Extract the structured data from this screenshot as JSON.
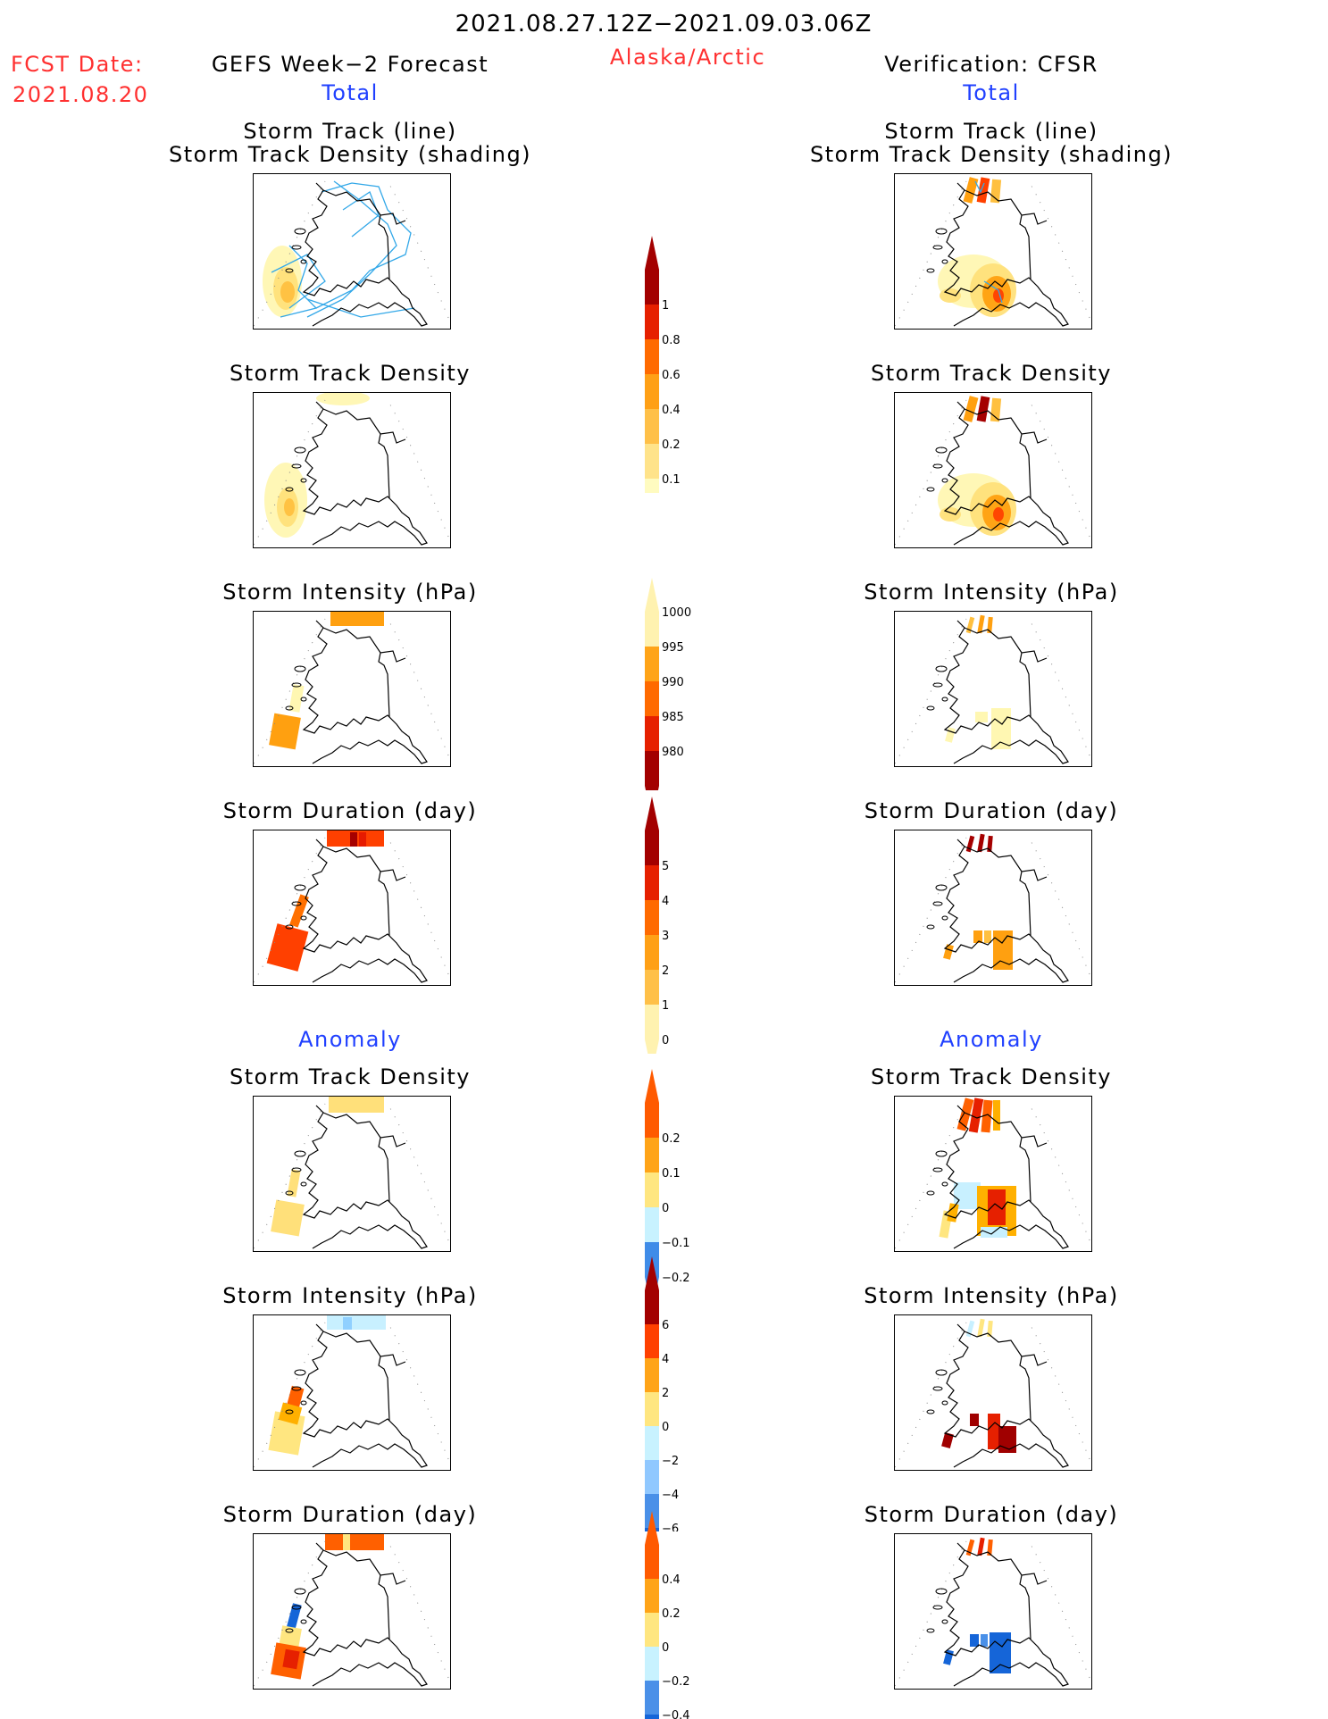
{
  "header": {
    "period": "2021.08.27.12Z−2021.09.03.06Z",
    "region": "Alaska/Arctic",
    "fcst_label": "FCST Date:",
    "fcst_date": "2021.08.20",
    "left_model": "GEFS Week−2 Forecast",
    "right_model": "Verification: CFSR"
  },
  "sections": {
    "total": "Total",
    "anomaly": "Anomaly"
  },
  "panel_titles": {
    "track_line": "Storm Track (line)",
    "track_shading": "Storm Track Density (shading)",
    "density": "Storm Track Density",
    "intensity": "Storm Intensity (hPa)",
    "duration": "Storm Duration (day)"
  },
  "colors": {
    "header_red": "#ff3030",
    "section_blue": "#2040ff",
    "track_line": "#33a8e8",
    "warm_scale": [
      "#fff7b2",
      "#ffe07a",
      "#ffc040",
      "#ffa010",
      "#ff7000",
      "#ff4000",
      "#e61a00",
      "#a50000"
    ],
    "anom_scale": [
      "#1565d8",
      "#4a90e8",
      "#90d0ff",
      "#c8f0ff",
      "#ffe680",
      "#ffb000",
      "#ff6000",
      "#e62000",
      "#a00000"
    ]
  },
  "chart_data": [
    {
      "type": "colorbar",
      "name": "total-storm-track-density",
      "ticks": [
        "0.1",
        "0.2",
        "0.4",
        "0.6",
        "0.8",
        "1"
      ],
      "colors": [
        "#fffbc0",
        "#ffe38a",
        "#ffc048",
        "#ffa016",
        "#ff6a00",
        "#e62000",
        "#a30000"
      ],
      "extend": "max"
    },
    {
      "type": "colorbar",
      "name": "total-storm-intensity",
      "ticks": [
        "1000",
        "995",
        "990",
        "985",
        "980"
      ],
      "colors": [
        "#fff2b0",
        "#ffa418",
        "#ff6a00",
        "#e62000",
        "#a30000"
      ],
      "extend": "both"
    },
    {
      "type": "colorbar",
      "name": "total-storm-duration",
      "ticks": [
        "0",
        "1",
        "2",
        "3",
        "4",
        "5"
      ],
      "colors": [
        "#fff2b0",
        "#ffc048",
        "#ffa016",
        "#ff6a00",
        "#e62000",
        "#a30000"
      ],
      "extend": "both"
    },
    {
      "type": "colorbar",
      "name": "anomaly-storm-track-density",
      "ticks": [
        "0.2",
        "0.1",
        "0",
        "−0.1",
        "−0.2"
      ],
      "colors": [
        "#ff5a00",
        "#ffa418",
        "#ffe680",
        "#c8f2ff",
        "#3f8ce8"
      ],
      "extend": "both"
    },
    {
      "type": "colorbar",
      "name": "anomaly-storm-intensity",
      "ticks": [
        "6",
        "4",
        "2",
        "0",
        "−2",
        "−4",
        "−6"
      ],
      "colors": [
        "#a30000",
        "#ff4000",
        "#ffa418",
        "#ffe680",
        "#c8f2ff",
        "#90c8ff",
        "#4a90e8",
        "#1565d8"
      ],
      "extend": "both"
    },
    {
      "type": "colorbar",
      "name": "anomaly-storm-duration",
      "ticks": [
        "0.4",
        "0.2",
        "0",
        "−0.2",
        "−0.4"
      ],
      "colors": [
        "#ff5a00",
        "#ffa418",
        "#ffe680",
        "#c8f2ff",
        "#4a90e8",
        "#1565d8"
      ],
      "extend": "both"
    }
  ]
}
